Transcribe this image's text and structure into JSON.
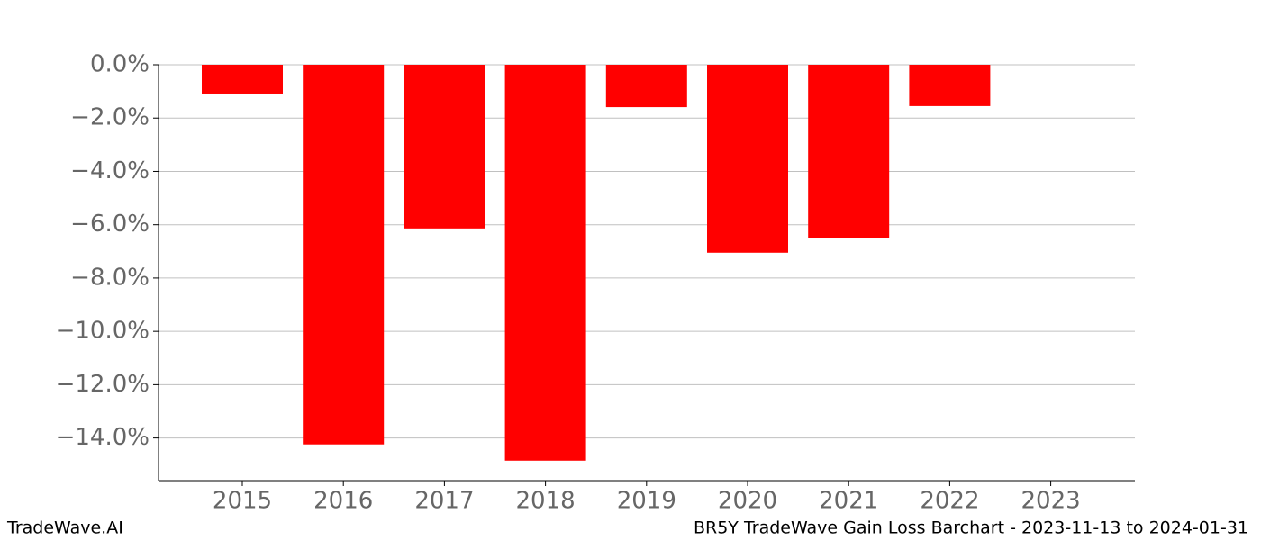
{
  "chart_data": {
    "type": "bar",
    "categories": [
      "2015",
      "2016",
      "2017",
      "2018",
      "2019",
      "2020",
      "2021",
      "2022",
      "2023"
    ],
    "values": [
      -1.08,
      -14.24,
      -6.14,
      -14.85,
      -1.59,
      -7.05,
      -6.51,
      -1.55,
      null
    ],
    "color": "#ff0000",
    "ylim": [
      -15.6,
      0
    ],
    "yticks": [
      {
        "value": 0,
        "label": "0.0%"
      },
      {
        "value": -2,
        "label": "−2.0%"
      },
      {
        "value": -4,
        "label": "−4.0%"
      },
      {
        "value": -6,
        "label": "−6.0%"
      },
      {
        "value": -8,
        "label": "−8.0%"
      },
      {
        "value": -10,
        "label": "−10.0%"
      },
      {
        "value": -12,
        "label": "−12.0%"
      },
      {
        "value": -14,
        "label": "−14.0%"
      }
    ],
    "grid": true
  },
  "footer": {
    "left": "TradeWave.AI",
    "right": "BR5Y TradeWave Gain Loss Barchart - 2023-11-13 to 2024-01-31"
  }
}
